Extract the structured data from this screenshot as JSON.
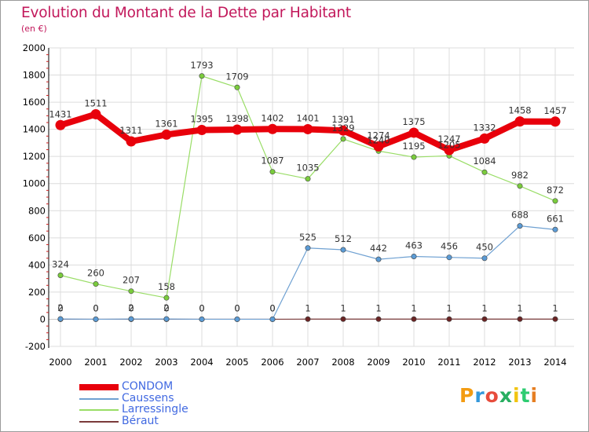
{
  "header": {
    "title": "Evolution du Montant de la Dette par Habitant",
    "unit": "(en €)"
  },
  "logo": {
    "text": "Proxiti"
  },
  "chart_data": {
    "type": "line",
    "title": "Evolution du Montant de la Dette par Habitant",
    "subtitle": "(en €)",
    "xlabel": "",
    "ylabel": "",
    "x": [
      "2000",
      "2001",
      "2002",
      "2003",
      "2004",
      "2005",
      "2006",
      "2007",
      "2008",
      "2009",
      "2010",
      "2011",
      "2012",
      "2013",
      "2014"
    ],
    "ylim": [
      -200,
      2000
    ],
    "yticks": [
      "-200",
      "0",
      "200",
      "400",
      "600",
      "800",
      "1000",
      "1200",
      "1400",
      "1600",
      "1800",
      "2000"
    ],
    "grid": true,
    "legend_position": "bottom-left",
    "series": [
      {
        "name": "CONDOM",
        "color": "#e8000b",
        "label_color": "#4169e1",
        "values": [
          1431,
          1511,
          1311,
          1361,
          1395,
          1398,
          1402,
          1401,
          1391,
          1274,
          1375,
          1247,
          1332,
          1458,
          1457
        ],
        "labels": [
          "1431",
          "1511",
          "1311",
          "1361",
          "1395",
          "1398",
          "1402",
          "1401",
          "1391",
          "1274",
          "1375",
          "1247",
          "1332",
          "1458",
          "1457"
        ]
      },
      {
        "name": "Caussens",
        "color": "#6fa1d2",
        "label_color": "#4169e1",
        "values": [
          2,
          0,
          2,
          2,
          0,
          0,
          0,
          525,
          512,
          442,
          463,
          456,
          450,
          688,
          661
        ],
        "labels": [
          "2",
          "0",
          "2",
          "2",
          "0",
          "0",
          "0",
          "525",
          "512",
          "442",
          "463",
          "456",
          "450",
          "688",
          "661"
        ]
      },
      {
        "name": "Larressingle",
        "color": "#99dd66",
        "label_color": "#4169e1",
        "values": [
          324,
          260,
          207,
          158,
          1793,
          1709,
          1087,
          1035,
          1329,
          1240,
          1195,
          1205,
          1084,
          982,
          872
        ],
        "labels": [
          "324",
          "260",
          "207",
          "158",
          "1793",
          "1709",
          "1087",
          "1035",
          "1329",
          "1240",
          "1195",
          "1205",
          "1084",
          "982",
          "872"
        ]
      },
      {
        "name": "Béraut",
        "color": "#7b3b3b",
        "label_color": "#4169e1",
        "values": [
          0,
          0,
          0,
          0,
          0,
          0,
          0,
          1,
          1,
          1,
          1,
          1,
          1,
          1,
          1
        ],
        "labels": [
          "0",
          "0",
          "0",
          "0",
          "0",
          "0",
          "0",
          "1",
          "1",
          "1",
          "1",
          "1",
          "1",
          "1",
          "1"
        ]
      }
    ]
  }
}
